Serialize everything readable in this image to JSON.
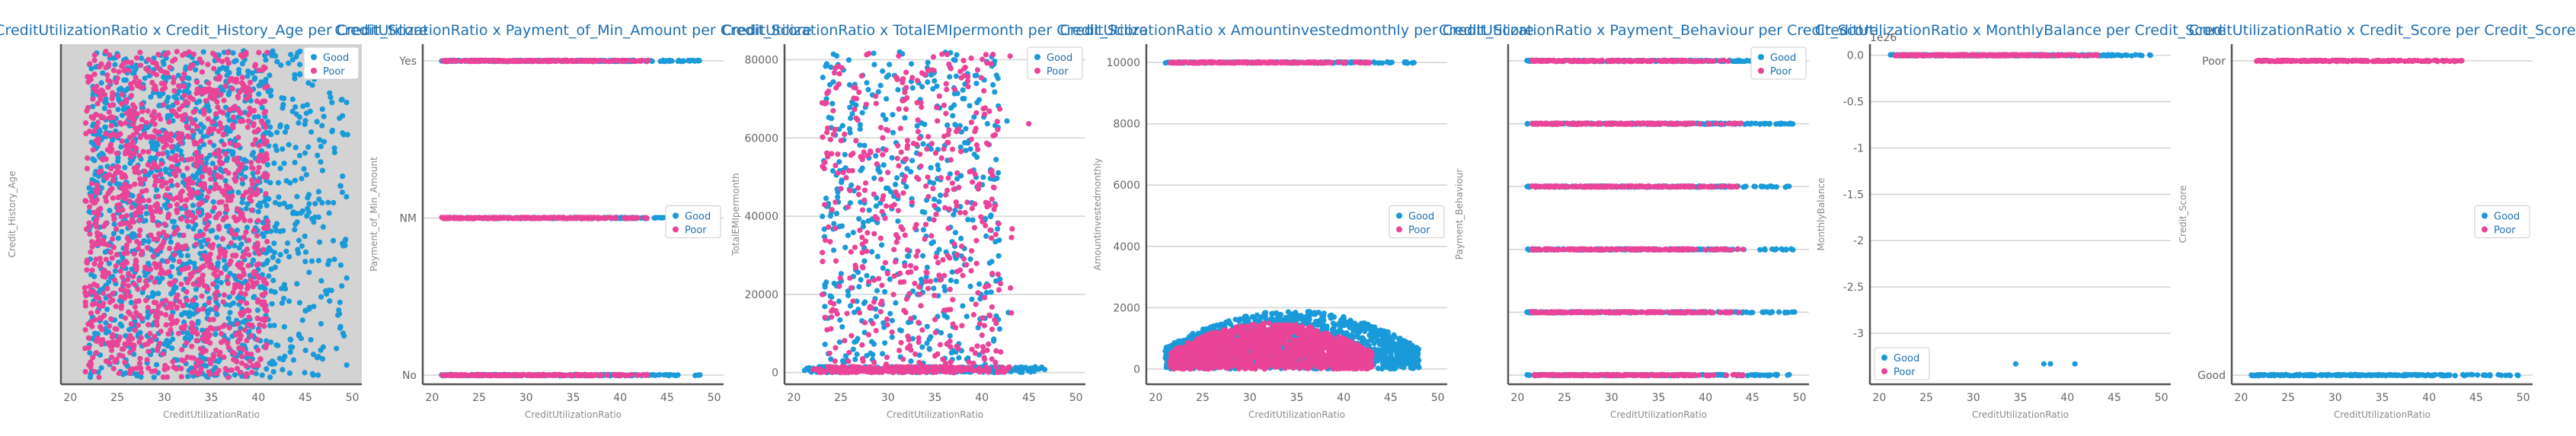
{
  "colors": {
    "good": "#1a9ad8",
    "poor": "#ea4499",
    "title": "#1f6fb0",
    "axis": "#555555",
    "label": "#8a8a8a",
    "grid": "#d3d3d3",
    "bg_shade": "#d3d3d3"
  },
  "chart_data": [
    {
      "type": "scatter",
      "title": "CreditUtilizationRatio x Credit_History_Age per Credit_Score",
      "xlabel": "CreditUtilizationRatio",
      "ylabel": "Credit_History_Age",
      "xlim": [
        19,
        51
      ],
      "xticks": [
        20,
        25,
        30,
        35,
        40,
        45,
        50
      ],
      "ylim": [
        0,
        1
      ],
      "yticks": [],
      "shaded": true,
      "grid": false,
      "legend": "top-right",
      "series": [
        {
          "name": "Good",
          "color": "#1a9ad8",
          "x_range": [
            20.5,
            49.5
          ],
          "y_range": [
            0.02,
            0.98
          ],
          "density": "dense"
        },
        {
          "name": "Poor",
          "color": "#ea4499",
          "x_range": [
            21,
            41
          ],
          "y_range": [
            0.02,
            0.98
          ],
          "density": "dense"
        }
      ]
    },
    {
      "type": "scatter",
      "title": "CreditUtilizationRatio x Payment_of_Min_Amount per Credit_Score",
      "xlabel": "CreditUtilizationRatio",
      "ylabel": "Payment_of_Min_Amount",
      "xlim": [
        19,
        51
      ],
      "xticks": [
        20,
        25,
        30,
        35,
        40,
        45,
        50
      ],
      "ycategories": [
        "No",
        "NM",
        "Yes"
      ],
      "grid": true,
      "legend": "center-right",
      "series": [
        {
          "name": "Good",
          "color": "#1a9ad8",
          "x_range": [
            21,
            48.5
          ],
          "rows": [
            "No",
            "NM",
            "Yes"
          ]
        },
        {
          "name": "Poor",
          "color": "#ea4499",
          "x_range": [
            21,
            43
          ],
          "rows": [
            "No",
            "NM",
            "Yes"
          ]
        }
      ]
    },
    {
      "type": "scatter",
      "title": "CreditUtilizationRatio x TotalEMIpermonth per Credit_Score",
      "xlabel": "CreditUtilizationRatio",
      "ylabel": "TotalEMIpermonth",
      "xlim": [
        19,
        51
      ],
      "xticks": [
        20,
        25,
        30,
        35,
        40,
        45,
        50
      ],
      "ylim": [
        -3000,
        84000
      ],
      "yticks": [
        0,
        20000,
        40000,
        60000,
        80000
      ],
      "grid": true,
      "legend": "top-right",
      "series": [
        {
          "name": "Good",
          "color": "#1a9ad8",
          "x_range": [
            21,
            47
          ],
          "y_range": [
            0,
            82000
          ],
          "band_max": 1500
        },
        {
          "name": "Poor",
          "color": "#ea4499",
          "x_range": [
            22,
            43
          ],
          "y_range": [
            0,
            82000
          ],
          "band_max": 1500
        }
      ]
    },
    {
      "type": "scatter",
      "title": "CreditUtilizationRatio x Amountinvestedmonthly per Credit_Score",
      "xlabel": "CreditUtilizationRatio",
      "ylabel": "Amountinvestedmonthly",
      "xlim": [
        19,
        51
      ],
      "xticks": [
        20,
        25,
        30,
        35,
        40,
        45,
        50
      ],
      "ylim": [
        -500,
        10600
      ],
      "yticks": [
        0,
        2000,
        4000,
        6000,
        8000,
        10000
      ],
      "grid": true,
      "legend": "center-right",
      "series": [
        {
          "name": "Good",
          "color": "#1a9ad8",
          "x_range": [
            21,
            48
          ],
          "cloud_max": 1900,
          "line_y": 10000
        },
        {
          "name": "Poor",
          "color": "#ea4499",
          "x_range": [
            21.5,
            43
          ],
          "cloud_max": 1500,
          "line_y": 10000
        }
      ]
    },
    {
      "type": "scatter",
      "title": "CreditUtilizationRatio x Payment_Behaviour per Credit_Score",
      "xlabel": "CreditUtilizationRatio",
      "ylabel": "Payment_Behaviour",
      "xlim": [
        19,
        51
      ],
      "xticks": [
        20,
        25,
        30,
        35,
        40,
        45,
        50
      ],
      "ylevels": 6,
      "grid": true,
      "legend": "top-right",
      "series": [
        {
          "name": "Good",
          "color": "#1a9ad8",
          "x_range": [
            21,
            49.5
          ]
        },
        {
          "name": "Poor",
          "color": "#ea4499",
          "x_range": [
            21.5,
            44
          ]
        }
      ]
    },
    {
      "type": "scatter",
      "title": "CreditUtilizationRatio x MonthlyBalance per Credit_Score",
      "xlabel": "CreditUtilizationRatio",
      "ylabel": "MonthlyBalance",
      "offset_text": "1e26",
      "xlim": [
        19,
        51
      ],
      "xticks": [
        20,
        25,
        30,
        35,
        40,
        45,
        50
      ],
      "ylim": [
        -3.55,
        0.12
      ],
      "yticks": [
        0.0,
        -0.5,
        -1.0,
        -1.5,
        -2.0,
        -2.5,
        -3.0
      ],
      "grid": true,
      "legend": "bottom-left",
      "series": [
        {
          "name": "Good",
          "color": "#1a9ad8",
          "x_range": [
            21,
            49
          ],
          "line_y": 0.0,
          "outliers": [
            [
              34.5,
              -3.33
            ],
            [
              37.5,
              -3.33
            ],
            [
              38.2,
              -3.33
            ],
            [
              40.8,
              -3.33
            ]
          ]
        },
        {
          "name": "Poor",
          "color": "#ea4499",
          "x_range": [
            21.5,
            43.5
          ],
          "line_y": 0.0
        }
      ]
    },
    {
      "type": "scatter",
      "title": "CreditUtilizationRatio x Credit_Score per Credit_Score",
      "xlabel": "CreditUtilizationRatio",
      "ylabel": "Credit_Score",
      "xlim": [
        19,
        51
      ],
      "xticks": [
        20,
        25,
        30,
        35,
        40,
        45,
        50
      ],
      "ycategories": [
        "Good",
        "Poor"
      ],
      "grid": true,
      "legend": "center-right",
      "series": [
        {
          "name": "Good",
          "color": "#1a9ad8",
          "x_range": [
            21,
            49.5
          ],
          "rows": [
            "Good"
          ]
        },
        {
          "name": "Poor",
          "color": "#ea4499",
          "x_range": [
            21.5,
            43.5
          ],
          "rows": [
            "Poor"
          ]
        }
      ]
    }
  ]
}
